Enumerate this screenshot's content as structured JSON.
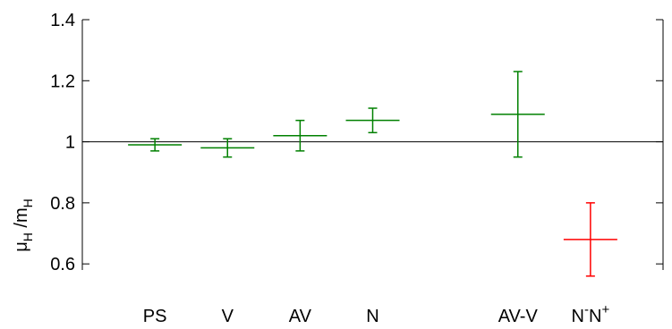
{
  "chart_data": {
    "type": "scatter",
    "title": "",
    "xlabel": "",
    "ylabel": {
      "mu": "μ",
      "mu_sub": "H",
      "slash": " /m",
      "m_sub": "H"
    },
    "ylim": [
      0.58,
      1.4
    ],
    "yticks": [
      {
        "value": 0.6,
        "label": "0.6"
      },
      {
        "value": 0.8,
        "label": "0.8"
      },
      {
        "value": 1.0,
        "label": "1"
      },
      {
        "value": 1.2,
        "label": "1.2"
      },
      {
        "value": 1.4,
        "label": "1.4"
      }
    ],
    "reference_line": 1.0,
    "grid": false,
    "categories": [
      {
        "key": "PS",
        "label": "PS",
        "x": 1
      },
      {
        "key": "V",
        "label": "V",
        "x": 2
      },
      {
        "key": "AV",
        "label": "AV",
        "x": 3
      },
      {
        "key": "N",
        "label": "N",
        "x": 4
      },
      {
        "key": "AV-V",
        "label": "AV-V",
        "x": 6
      },
      {
        "key": "N-N+",
        "label": "N-N+",
        "label_base": "N",
        "label_sup1": "-",
        "label_base2": "N",
        "label_sup2": "+",
        "x": 7
      }
    ],
    "series": [
      {
        "color": "#008000",
        "points": [
          {
            "category": "PS",
            "y": 0.99,
            "y_low": 0.97,
            "y_high": 1.01
          },
          {
            "category": "V",
            "y": 0.98,
            "y_low": 0.95,
            "y_high": 1.01
          },
          {
            "category": "AV",
            "y": 1.02,
            "y_low": 0.97,
            "y_high": 1.07
          },
          {
            "category": "N",
            "y": 1.07,
            "y_low": 1.03,
            "y_high": 1.11
          },
          {
            "category": "AV-V",
            "y": 1.09,
            "y_low": 0.95,
            "y_high": 1.23
          }
        ]
      },
      {
        "color": "#ff0000",
        "points": [
          {
            "category": "N-N+",
            "y": 0.68,
            "y_low": 0.56,
            "y_high": 0.8
          }
        ]
      }
    ]
  }
}
